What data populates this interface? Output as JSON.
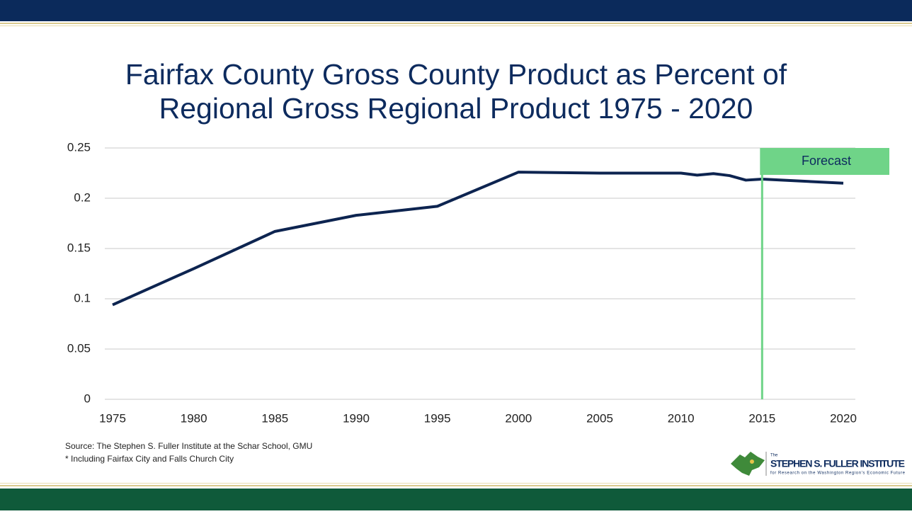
{
  "chart_data": {
    "type": "line",
    "title": "Fairfax County Gross County Product as Percent of",
    "subtitle": "Regional Gross Regional Product 1975 - 2020",
    "x": [
      1975,
      1980,
      1985,
      1990,
      1995,
      2000,
      2005,
      2010,
      2011,
      2012,
      2013,
      2014,
      2015,
      2020
    ],
    "values": [
      0.094,
      0.13,
      0.167,
      0.183,
      0.192,
      0.226,
      0.225,
      0.225,
      0.223,
      0.2245,
      0.2225,
      0.218,
      0.219,
      0.215
    ],
    "color": "#0d2450",
    "xlim": [
      1975,
      2020
    ],
    "xticks": [
      1975,
      1980,
      1985,
      1990,
      1995,
      2000,
      2005,
      2010,
      2015,
      2020
    ],
    "ylim": [
      0,
      0.25
    ],
    "yticks": [
      0,
      0.05,
      0.1,
      0.15,
      0.2,
      0.25
    ],
    "grid": true,
    "annotation": {
      "text": "Forecast",
      "x": 2015,
      "color": "#6fd488"
    },
    "notes": [
      "Source: The Stephen S. Fuller Institute at the Schar School, GMU",
      "* Including Fairfax City and Falls Church City"
    ]
  },
  "logo": {
    "small": "The",
    "name": "STEPHEN S. FULLER INSTITUTE",
    "tagline": "for Research on the Washington Region's Economic Future"
  }
}
